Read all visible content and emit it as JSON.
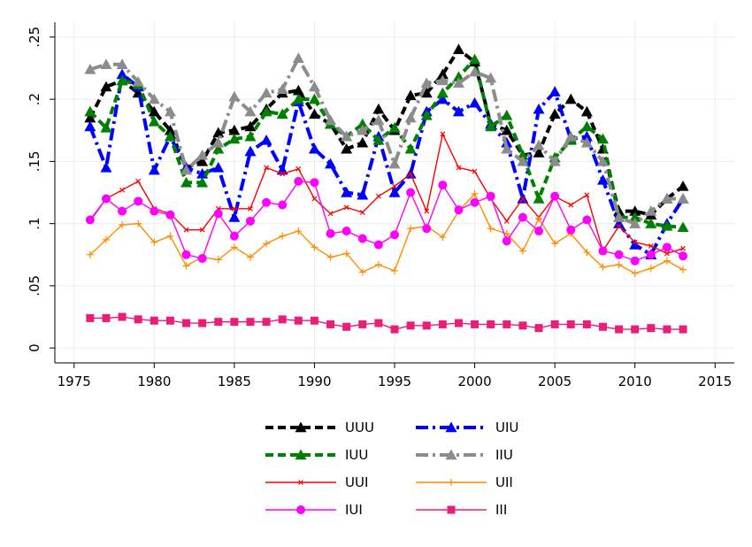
{
  "chart_data": {
    "type": "line",
    "x": [
      1976,
      1977,
      1978,
      1979,
      1980,
      1981,
      1982,
      1983,
      1984,
      1985,
      1986,
      1987,
      1988,
      1989,
      1990,
      1991,
      1992,
      1993,
      1994,
      1995,
      1996,
      1997,
      1998,
      1999,
      2000,
      2001,
      2002,
      2003,
      2004,
      2005,
      2006,
      2007,
      2008,
      2009,
      2010,
      2011,
      2012,
      2013
    ],
    "xlim": [
      1973.8,
      2016.2
    ],
    "xticks": [
      1975,
      1980,
      1985,
      1990,
      1995,
      2000,
      2005,
      2010,
      2015
    ],
    "ylim": [
      -0.012,
      0.262
    ],
    "yticks": [
      {
        "value": 0,
        "label": "0"
      },
      {
        "value": 0.05,
        "label": ".05"
      },
      {
        "value": 0.1,
        "label": ".1"
      },
      {
        "value": 0.15,
        "label": ".15"
      },
      {
        "value": 0.2,
        "label": ".2"
      },
      {
        "value": 0.25,
        "label": ".25"
      }
    ],
    "grid": true,
    "series": [
      {
        "name": "UUU",
        "color": "#000000",
        "line_style": "dash",
        "marker": "triangle",
        "values": [
          0.185,
          0.21,
          0.215,
          0.205,
          0.19,
          0.175,
          0.145,
          0.15,
          0.173,
          0.175,
          0.178,
          0.192,
          0.205,
          0.207,
          0.188,
          0.18,
          0.16,
          0.165,
          0.192,
          0.175,
          0.203,
          0.205,
          0.22,
          0.24,
          0.23,
          0.18,
          0.175,
          0.155,
          0.157,
          0.188,
          0.2,
          0.19,
          0.16,
          0.11,
          0.11,
          0.107,
          0.12,
          0.13
        ]
      },
      {
        "name": "UIU",
        "color": "#0000ff",
        "line_style": "longdash-dot",
        "marker": "triangle",
        "values": [
          0.178,
          0.145,
          0.22,
          0.21,
          0.143,
          0.17,
          0.145,
          0.14,
          0.145,
          0.105,
          0.158,
          0.167,
          0.143,
          0.198,
          0.16,
          0.148,
          0.125,
          0.123,
          0.17,
          0.125,
          0.14,
          0.19,
          0.2,
          0.19,
          0.197,
          0.18,
          0.165,
          0.12,
          0.192,
          0.206,
          0.168,
          0.17,
          0.135,
          0.1,
          0.083,
          0.075,
          0.1,
          0.12
        ]
      },
      {
        "name": "IUU",
        "color": "#008000",
        "line_style": "dash",
        "marker": "triangle",
        "values": [
          0.19,
          0.177,
          0.215,
          0.212,
          0.182,
          0.17,
          0.133,
          0.133,
          0.16,
          0.168,
          0.17,
          0.19,
          0.188,
          0.2,
          0.2,
          0.18,
          0.17,
          0.18,
          0.167,
          0.177,
          0.16,
          0.187,
          0.205,
          0.218,
          0.232,
          0.178,
          0.187,
          0.155,
          0.12,
          0.153,
          0.167,
          0.178,
          0.168,
          0.105,
          0.105,
          0.1,
          0.098,
          0.097
        ]
      },
      {
        "name": "IIU",
        "color": "#8c8c8c",
        "line_style": "longdash-dot",
        "marker": "triangle",
        "values": [
          0.224,
          0.228,
          0.228,
          0.214,
          0.2,
          0.19,
          0.143,
          0.155,
          0.165,
          0.202,
          0.19,
          0.205,
          0.208,
          0.233,
          0.21,
          0.183,
          0.17,
          0.175,
          0.183,
          0.148,
          0.185,
          0.213,
          0.215,
          0.213,
          0.222,
          0.217,
          0.16,
          0.15,
          0.163,
          0.15,
          0.17,
          0.165,
          0.15,
          0.105,
          0.1,
          0.11,
          0.12,
          0.12
        ]
      },
      {
        "name": "UUI",
        "color": "#ff0000",
        "line_style": "solid",
        "marker": "x",
        "values": [
          0.102,
          0.12,
          0.127,
          0.134,
          0.112,
          0.108,
          0.095,
          0.095,
          0.112,
          0.112,
          0.112,
          0.145,
          0.14,
          0.144,
          0.12,
          0.108,
          0.113,
          0.109,
          0.122,
          0.13,
          0.14,
          0.11,
          0.172,
          0.145,
          0.142,
          0.12,
          0.102,
          0.12,
          0.105,
          0.122,
          0.115,
          0.123,
          0.078,
          0.098,
          0.085,
          0.082,
          0.076,
          0.08
        ]
      },
      {
        "name": "UII",
        "color": "#ff8c00",
        "line_style": "solid",
        "marker": "plus",
        "values": [
          0.075,
          0.087,
          0.099,
          0.1,
          0.085,
          0.09,
          0.066,
          0.073,
          0.071,
          0.081,
          0.073,
          0.084,
          0.09,
          0.094,
          0.081,
          0.073,
          0.076,
          0.061,
          0.067,
          0.062,
          0.096,
          0.098,
          0.089,
          0.11,
          0.124,
          0.096,
          0.092,
          0.078,
          0.104,
          0.084,
          0.092,
          0.077,
          0.065,
          0.067,
          0.06,
          0.064,
          0.07,
          0.063
        ]
      },
      {
        "name": "IUI",
        "color": "#ff00ff",
        "line_style": "solid",
        "marker": "circle",
        "values": [
          0.103,
          0.12,
          0.11,
          0.118,
          0.11,
          0.107,
          0.075,
          0.072,
          0.108,
          0.09,
          0.102,
          0.117,
          0.115,
          0.134,
          0.133,
          0.092,
          0.094,
          0.088,
          0.083,
          0.091,
          0.125,
          0.096,
          0.131,
          0.111,
          0.117,
          0.122,
          0.086,
          0.105,
          0.094,
          0.122,
          0.095,
          0.103,
          0.078,
          0.075,
          0.07,
          0.075,
          0.081,
          0.074
        ]
      },
      {
        "name": "III",
        "color": "#ea1e78",
        "line_style": "solid",
        "marker": "square",
        "values": [
          0.024,
          0.024,
          0.025,
          0.023,
          0.022,
          0.022,
          0.02,
          0.02,
          0.021,
          0.021,
          0.021,
          0.021,
          0.023,
          0.022,
          0.022,
          0.019,
          0.017,
          0.019,
          0.02,
          0.015,
          0.018,
          0.018,
          0.019,
          0.02,
          0.019,
          0.019,
          0.019,
          0.018,
          0.016,
          0.019,
          0.019,
          0.019,
          0.017,
          0.015,
          0.015,
          0.016,
          0.015,
          0.015
        ]
      }
    ]
  }
}
